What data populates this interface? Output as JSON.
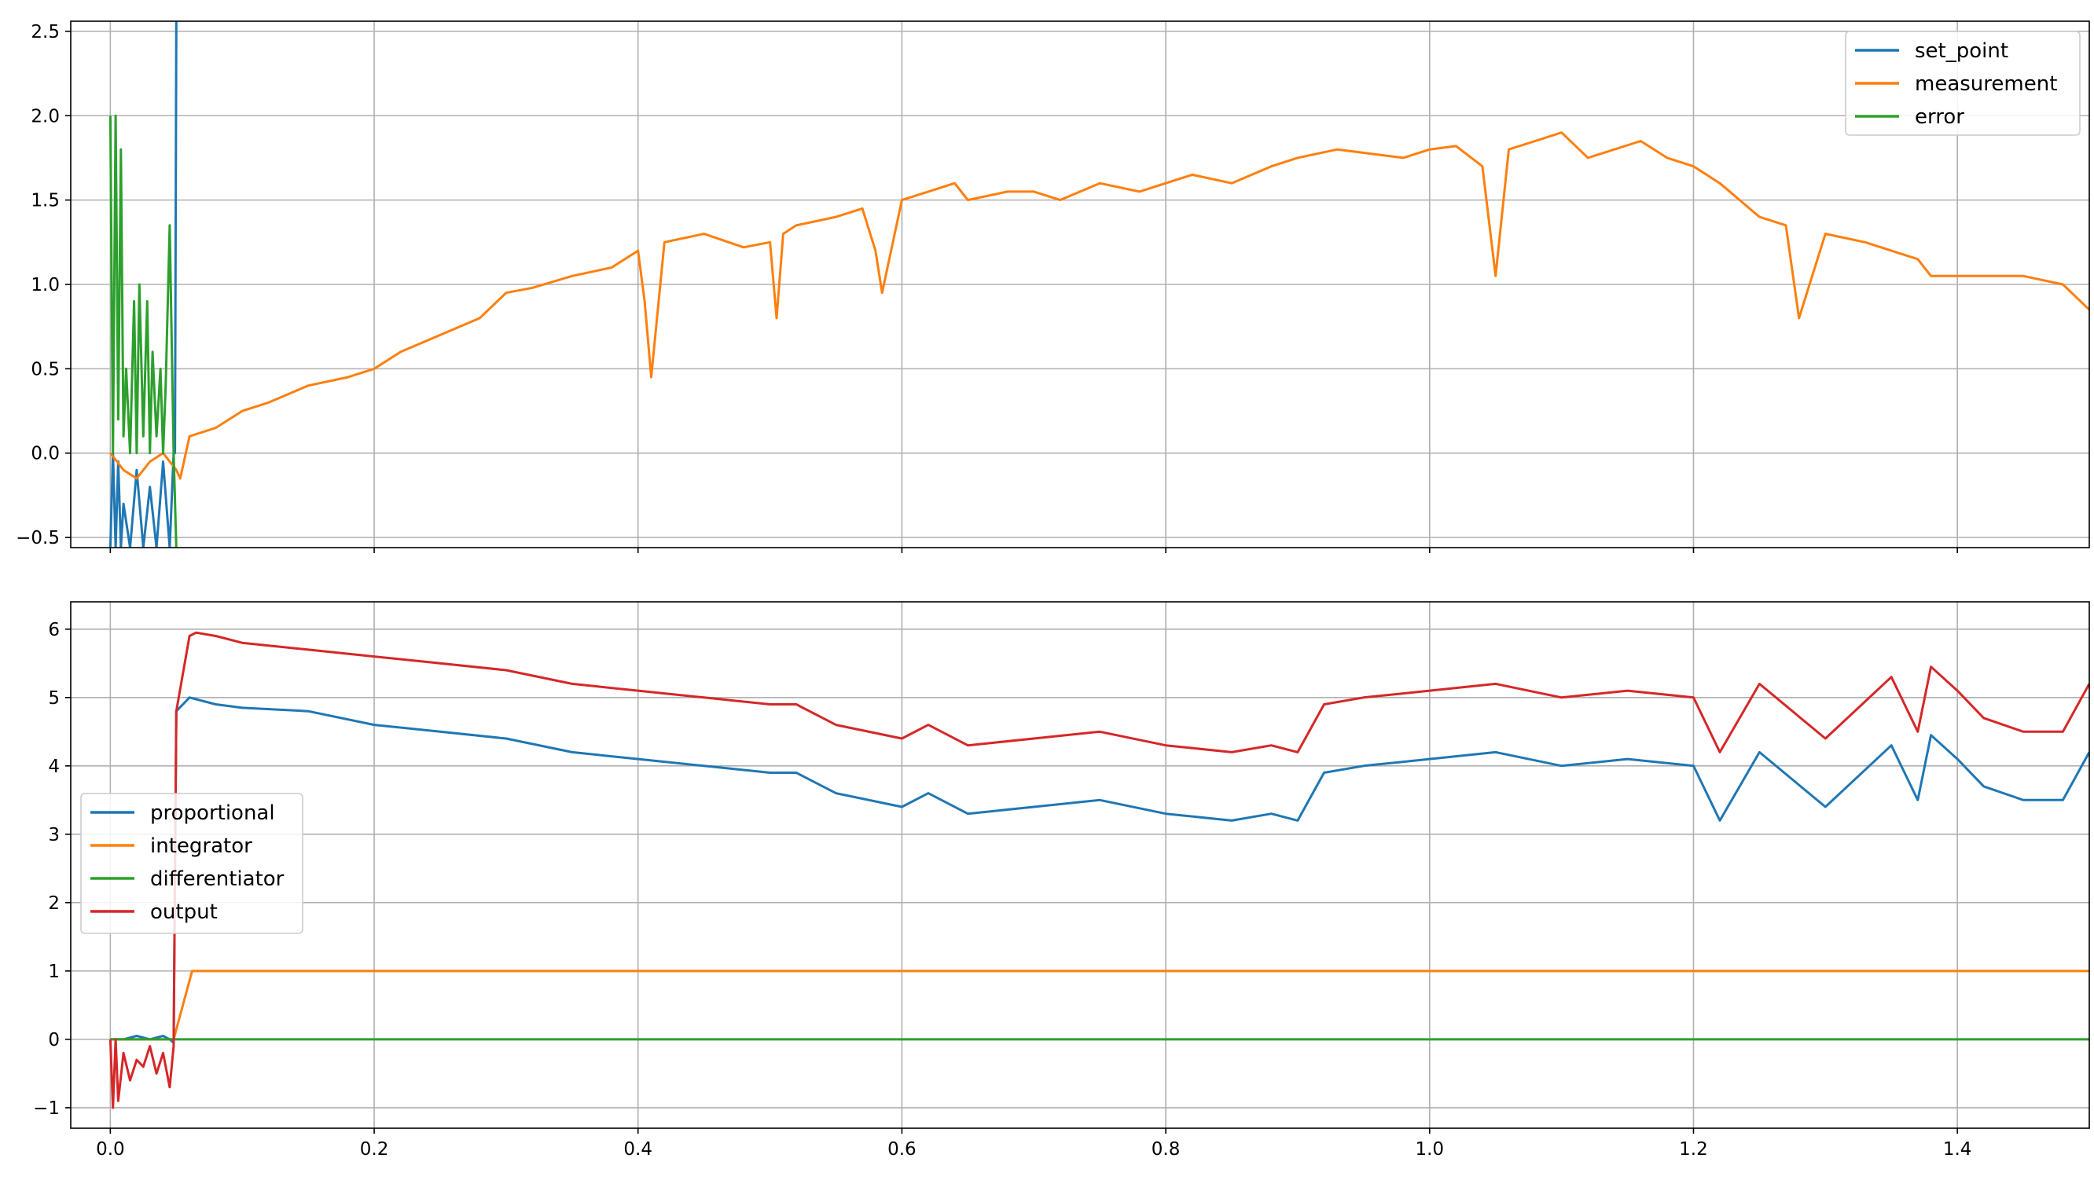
{
  "chart_data": [
    {
      "type": "line",
      "id": "top",
      "xlim": [
        -0.03,
        1.5
      ],
      "ylim": [
        -0.56,
        2.56
      ],
      "xticks": [
        0.0,
        0.2,
        0.4,
        0.6,
        0.8,
        1.0,
        1.2,
        1.4
      ],
      "xtick_labels_visible": false,
      "yticks": [
        -0.5,
        0.0,
        0.5,
        1.0,
        1.5,
        2.0,
        2.5
      ],
      "ytick_labels": [
        "−0.5",
        "0.0",
        "0.5",
        "1.0",
        "1.5",
        "2.0",
        "2.5"
      ],
      "grid": true,
      "legend": {
        "placement": "top-right"
      },
      "series": [
        {
          "name": "set_point",
          "color": "#1f77b4",
          "x": [
            0.0,
            0.002,
            0.004,
            0.006,
            0.008,
            0.01,
            0.015,
            0.02,
            0.025,
            0.03,
            0.035,
            0.04,
            0.045,
            0.048,
            0.049,
            0.05
          ],
          "y": [
            -0.56,
            0.0,
            -0.56,
            -0.05,
            -0.56,
            -0.3,
            -0.56,
            -0.1,
            -0.56,
            -0.2,
            -0.56,
            -0.05,
            -0.56,
            0.0,
            0.0,
            2.56
          ]
        },
        {
          "name": "measurement",
          "color": "#ff7f0e",
          "x": [
            0.0,
            0.01,
            0.02,
            0.03,
            0.04,
            0.05,
            0.053,
            0.06,
            0.08,
            0.1,
            0.12,
            0.15,
            0.18,
            0.2,
            0.22,
            0.25,
            0.28,
            0.3,
            0.32,
            0.35,
            0.38,
            0.4,
            0.405,
            0.41,
            0.42,
            0.45,
            0.48,
            0.5,
            0.505,
            0.51,
            0.52,
            0.55,
            0.57,
            0.58,
            0.585,
            0.6,
            0.62,
            0.64,
            0.65,
            0.68,
            0.7,
            0.72,
            0.75,
            0.78,
            0.8,
            0.82,
            0.85,
            0.88,
            0.9,
            0.93,
            0.95,
            0.98,
            1.0,
            1.02,
            1.04,
            1.05,
            1.06,
            1.08,
            1.1,
            1.12,
            1.14,
            1.16,
            1.18,
            1.2,
            1.22,
            1.25,
            1.27,
            1.28,
            1.3,
            1.33,
            1.35,
            1.37,
            1.38,
            1.4,
            1.43,
            1.45,
            1.48,
            1.5
          ],
          "y": [
            0.0,
            -0.1,
            -0.15,
            -0.05,
            0.0,
            -0.1,
            -0.15,
            0.1,
            0.15,
            0.25,
            0.3,
            0.4,
            0.45,
            0.5,
            0.6,
            0.7,
            0.8,
            0.95,
            0.98,
            1.05,
            1.1,
            1.2,
            0.9,
            0.45,
            1.25,
            1.3,
            1.22,
            1.25,
            0.8,
            1.3,
            1.35,
            1.4,
            1.45,
            1.2,
            0.95,
            1.5,
            1.55,
            1.6,
            1.5,
            1.55,
            1.55,
            1.5,
            1.6,
            1.55,
            1.6,
            1.65,
            1.6,
            1.7,
            1.75,
            1.8,
            1.78,
            1.75,
            1.8,
            1.82,
            1.7,
            1.05,
            1.8,
            1.85,
            1.9,
            1.75,
            1.8,
            1.85,
            1.75,
            1.7,
            1.6,
            1.4,
            1.35,
            0.8,
            1.3,
            1.25,
            1.2,
            1.15,
            1.05,
            1.05,
            1.05,
            1.05,
            1.0,
            0.85
          ]
        },
        {
          "name": "error",
          "color": "#2ca02c",
          "x": [
            0.0,
            0.002,
            0.004,
            0.006,
            0.008,
            0.01,
            0.012,
            0.015,
            0.018,
            0.02,
            0.022,
            0.025,
            0.028,
            0.03,
            0.032,
            0.035,
            0.038,
            0.04,
            0.042,
            0.045,
            0.048,
            0.05
          ],
          "y": [
            2.0,
            0.0,
            2.0,
            0.2,
            1.8,
            0.1,
            0.5,
            0.0,
            0.9,
            0.0,
            1.0,
            0.1,
            0.9,
            0.0,
            0.6,
            0.1,
            0.5,
            0.0,
            0.4,
            1.35,
            0.0,
            -0.56
          ]
        }
      ]
    },
    {
      "type": "line",
      "id": "bottom",
      "xlim": [
        -0.03,
        1.5
      ],
      "ylim": [
        -1.3,
        6.4
      ],
      "xticks": [
        0.0,
        0.2,
        0.4,
        0.6,
        0.8,
        1.0,
        1.2,
        1.4
      ],
      "xtick_labels": [
        "0.0",
        "0.2",
        "0.4",
        "0.6",
        "0.8",
        "1.0",
        "1.2",
        "1.4"
      ],
      "yticks": [
        -1,
        0,
        1,
        2,
        3,
        4,
        5,
        6
      ],
      "ytick_labels": [
        "−1",
        "0",
        "1",
        "2",
        "3",
        "4",
        "5",
        "6"
      ],
      "grid": true,
      "legend": {
        "placement": "center-left"
      },
      "series": [
        {
          "name": "proportional",
          "color": "#1f77b4",
          "x": [
            0.0,
            0.01,
            0.02,
            0.03,
            0.04,
            0.045,
            0.048,
            0.05,
            0.06,
            0.08,
            0.1,
            0.15,
            0.2,
            0.25,
            0.3,
            0.35,
            0.4,
            0.45,
            0.5,
            0.52,
            0.55,
            0.6,
            0.62,
            0.65,
            0.7,
            0.75,
            0.8,
            0.85,
            0.88,
            0.9,
            0.92,
            0.95,
            1.0,
            1.05,
            1.1,
            1.15,
            1.2,
            1.22,
            1.25,
            1.3,
            1.35,
            1.37,
            1.38,
            1.4,
            1.42,
            1.45,
            1.48,
            1.5
          ],
          "y": [
            0.0,
            0.0,
            0.05,
            0.0,
            0.05,
            0.0,
            -0.05,
            4.8,
            5.0,
            4.9,
            4.85,
            4.8,
            4.6,
            4.5,
            4.4,
            4.2,
            4.1,
            4.0,
            3.9,
            3.9,
            3.6,
            3.4,
            3.6,
            3.3,
            3.4,
            3.5,
            3.3,
            3.2,
            3.3,
            3.2,
            3.9,
            4.0,
            4.1,
            4.2,
            4.0,
            4.1,
            4.0,
            3.2,
            4.2,
            3.4,
            4.3,
            3.5,
            4.45,
            4.1,
            3.7,
            3.5,
            3.5,
            4.2
          ]
        },
        {
          "name": "integrator",
          "color": "#ff7f0e",
          "x": [
            0.0,
            0.048,
            0.062,
            1.5
          ],
          "y": [
            0.0,
            0.0,
            1.0,
            1.0
          ]
        },
        {
          "name": "differentiator",
          "color": "#2ca02c",
          "x": [
            0.0,
            1.5
          ],
          "y": [
            0.0,
            0.0
          ]
        },
        {
          "name": "output",
          "color": "#d62728",
          "x": [
            0.0,
            0.002,
            0.004,
            0.006,
            0.01,
            0.015,
            0.02,
            0.025,
            0.03,
            0.035,
            0.04,
            0.045,
            0.048,
            0.05,
            0.06,
            0.065,
            0.08,
            0.1,
            0.15,
            0.2,
            0.25,
            0.3,
            0.35,
            0.4,
            0.45,
            0.5,
            0.52,
            0.55,
            0.6,
            0.62,
            0.65,
            0.7,
            0.75,
            0.8,
            0.85,
            0.88,
            0.9,
            0.92,
            0.95,
            1.0,
            1.05,
            1.1,
            1.15,
            1.2,
            1.22,
            1.25,
            1.3,
            1.35,
            1.37,
            1.38,
            1.4,
            1.42,
            1.45,
            1.48,
            1.5
          ],
          "y": [
            0.0,
            -1.0,
            0.0,
            -0.9,
            -0.2,
            -0.6,
            -0.3,
            -0.4,
            -0.1,
            -0.5,
            -0.2,
            -0.7,
            -0.1,
            4.8,
            5.9,
            5.95,
            5.9,
            5.8,
            5.7,
            5.6,
            5.5,
            5.4,
            5.2,
            5.1,
            5.0,
            4.9,
            4.9,
            4.6,
            4.4,
            4.6,
            4.3,
            4.4,
            4.5,
            4.3,
            4.2,
            4.3,
            4.2,
            4.9,
            5.0,
            5.1,
            5.2,
            5.0,
            5.1,
            5.0,
            4.2,
            5.2,
            4.4,
            5.3,
            4.5,
            5.45,
            5.1,
            4.7,
            4.5,
            4.5,
            5.2
          ]
        }
      ]
    }
  ]
}
